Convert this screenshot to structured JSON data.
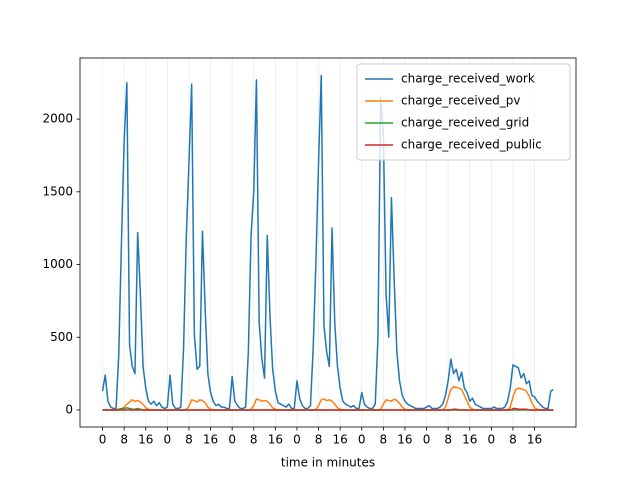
{
  "chart_data": {
    "type": "line",
    "x_label": "time in minutes",
    "x": [
      0,
      1,
      2,
      3,
      4,
      5,
      6,
      7,
      8,
      9,
      10,
      11,
      12,
      13,
      14,
      15,
      16,
      17,
      18,
      19,
      20,
      21,
      22,
      23,
      24,
      25,
      26,
      27,
      28,
      29,
      30,
      31,
      32,
      33,
      34,
      35,
      36,
      37,
      38,
      39,
      40,
      41,
      42,
      43,
      44,
      45,
      46,
      47,
      48,
      49,
      50,
      51,
      52,
      53,
      54,
      55,
      56,
      57,
      58,
      59,
      60,
      61,
      62,
      63,
      64,
      65,
      66,
      67,
      68,
      69,
      70,
      71,
      72,
      73,
      74,
      75,
      76,
      77,
      78,
      79,
      80,
      81,
      82,
      83,
      84,
      85,
      86,
      87,
      88,
      89,
      90,
      91,
      92,
      93,
      94,
      95,
      96,
      97,
      98,
      99,
      100,
      101,
      102,
      103,
      104,
      105,
      106,
      107,
      108,
      109,
      110,
      111,
      112,
      113,
      114,
      115,
      116,
      117,
      118,
      119,
      120,
      121,
      122,
      123,
      124,
      125,
      126,
      127,
      128,
      129,
      130,
      131,
      132,
      133,
      134,
      135,
      136,
      137,
      138,
      139,
      140,
      141,
      142,
      143,
      144,
      145,
      146,
      147,
      148,
      149,
      150,
      151,
      152,
      153,
      154,
      155,
      156,
      157,
      158,
      159,
      160,
      161,
      162,
      163,
      164,
      165,
      166,
      167
    ],
    "series": [
      {
        "name": "charge_received_work",
        "color": "#1f77b4",
        "values": [
          130,
          240,
          60,
          20,
          10,
          10,
          380,
          1150,
          1850,
          2250,
          450,
          300,
          250,
          1220,
          800,
          300,
          150,
          60,
          40,
          60,
          30,
          50,
          20,
          10,
          20,
          240,
          40,
          10,
          10,
          20,
          420,
          1180,
          1700,
          2240,
          520,
          280,
          300,
          1230,
          700,
          250,
          120,
          60,
          30,
          40,
          20,
          20,
          10,
          10,
          230,
          60,
          30,
          10,
          10,
          20,
          400,
          1200,
          1500,
          2270,
          600,
          350,
          220,
          1200,
          650,
          280,
          130,
          50,
          40,
          30,
          20,
          40,
          10,
          10,
          200,
          80,
          30,
          10,
          10,
          30,
          420,
          1000,
          1700,
          2300,
          580,
          400,
          300,
          1250,
          600,
          300,
          150,
          60,
          40,
          30,
          20,
          30,
          10,
          10,
          120,
          40,
          20,
          10,
          10,
          40,
          500,
          2150,
          1900,
          800,
          500,
          1460,
          900,
          400,
          200,
          100,
          60,
          40,
          30,
          20,
          10,
          10,
          10,
          10,
          20,
          30,
          10,
          10,
          10,
          20,
          40,
          100,
          200,
          350,
          250,
          280,
          200,
          260,
          150,
          120,
          60,
          80,
          40,
          30,
          20,
          10,
          10,
          10,
          10,
          20,
          10,
          10,
          10,
          20,
          60,
          150,
          310,
          300,
          290,
          220,
          250,
          180,
          200,
          100,
          90,
          60,
          40,
          20,
          10,
          10,
          130,
          140
        ]
      },
      {
        "name": "charge_received_pv",
        "color": "#ff7f0e",
        "values": [
          0,
          0,
          0,
          0,
          0,
          0,
          0,
          5,
          20,
          40,
          55,
          70,
          60,
          65,
          55,
          40,
          15,
          5,
          0,
          0,
          0,
          0,
          0,
          0,
          0,
          0,
          0,
          0,
          0,
          0,
          0,
          5,
          25,
          70,
          65,
          55,
          70,
          65,
          50,
          20,
          5,
          0,
          0,
          0,
          0,
          0,
          0,
          0,
          0,
          0,
          0,
          0,
          0,
          0,
          0,
          5,
          30,
          75,
          70,
          60,
          65,
          60,
          40,
          15,
          5,
          0,
          0,
          0,
          0,
          0,
          0,
          0,
          0,
          0,
          0,
          0,
          0,
          0,
          0,
          5,
          30,
          70,
          75,
          65,
          70,
          60,
          40,
          15,
          5,
          0,
          0,
          0,
          0,
          0,
          0,
          0,
          0,
          0,
          0,
          0,
          0,
          0,
          0,
          5,
          40,
          70,
          65,
          60,
          75,
          65,
          45,
          20,
          5,
          0,
          0,
          0,
          0,
          0,
          0,
          0,
          0,
          0,
          0,
          0,
          0,
          0,
          0,
          20,
          80,
          140,
          160,
          155,
          150,
          140,
          100,
          60,
          20,
          5,
          0,
          0,
          0,
          0,
          0,
          0,
          0,
          0,
          0,
          0,
          0,
          0,
          0,
          20,
          90,
          140,
          150,
          145,
          140,
          130,
          95,
          50,
          15,
          5,
          0,
          0,
          0,
          0,
          0,
          0
        ]
      },
      {
        "name": "charge_received_grid",
        "color": "#2ca02c",
        "values": [
          0,
          0,
          0,
          0,
          0,
          0,
          5,
          10,
          10,
          15,
          10,
          5,
          5,
          10,
          5,
          0,
          0,
          0,
          0,
          0,
          0,
          0,
          0,
          0,
          0,
          0,
          0,
          0,
          0,
          0,
          0,
          0,
          0,
          0,
          0,
          0,
          0,
          0,
          0,
          0,
          0,
          0,
          0,
          0,
          0,
          0,
          0,
          0,
          0,
          0,
          0,
          0,
          0,
          0,
          0,
          0,
          0,
          0,
          0,
          0,
          0,
          0,
          0,
          0,
          0,
          0,
          0,
          0,
          0,
          0,
          0,
          0,
          0,
          0,
          0,
          0,
          0,
          0,
          0,
          0,
          0,
          0,
          0,
          0,
          0,
          0,
          0,
          0,
          0,
          0,
          0,
          0,
          0,
          0,
          0,
          0,
          0,
          0,
          0,
          0,
          0,
          0,
          0,
          0,
          0,
          0,
          0,
          0,
          0,
          0,
          0,
          0,
          0,
          0,
          0,
          0,
          0,
          0,
          0,
          0,
          0,
          0,
          0,
          0,
          0,
          0,
          0,
          0,
          0,
          0,
          0,
          0,
          0,
          0,
          0,
          0,
          0,
          0,
          0,
          0,
          0,
          0,
          0,
          0,
          0,
          0,
          0,
          0,
          0,
          0,
          0,
          0,
          0,
          0,
          0,
          0,
          0,
          0,
          0,
          0,
          0,
          0,
          0,
          0,
          0,
          0,
          0,
          0
        ]
      },
      {
        "name": "charge_received_public",
        "color": "#d62728",
        "values": [
          0,
          0,
          0,
          0,
          0,
          0,
          0,
          0,
          0,
          0,
          0,
          0,
          0,
          0,
          0,
          0,
          0,
          0,
          0,
          0,
          0,
          0,
          0,
          0,
          0,
          0,
          0,
          0,
          0,
          0,
          0,
          0,
          0,
          0,
          0,
          0,
          0,
          0,
          0,
          0,
          0,
          0,
          0,
          0,
          0,
          0,
          0,
          0,
          0,
          0,
          0,
          0,
          0,
          0,
          0,
          0,
          0,
          0,
          0,
          0,
          0,
          0,
          0,
          0,
          0,
          0,
          0,
          0,
          0,
          0,
          0,
          0,
          0,
          0,
          0,
          0,
          0,
          0,
          0,
          0,
          0,
          0,
          0,
          0,
          0,
          0,
          0,
          0,
          0,
          0,
          0,
          0,
          0,
          0,
          0,
          0,
          0,
          0,
          0,
          0,
          0,
          0,
          0,
          0,
          0,
          0,
          0,
          0,
          0,
          0,
          0,
          0,
          0,
          0,
          0,
          0,
          0,
          0,
          0,
          0,
          0,
          0,
          0,
          0,
          0,
          0,
          0,
          0,
          0,
          0,
          5,
          5,
          0,
          0,
          0,
          0,
          0,
          0,
          0,
          0,
          0,
          0,
          0,
          0,
          0,
          0,
          0,
          0,
          0,
          0,
          0,
          0,
          10,
          10,
          5,
          5,
          5,
          5,
          0,
          0,
          0,
          0,
          0,
          0,
          0,
          0,
          0,
          0
        ]
      }
    ],
    "xlim": [
      -8.35,
      175.35
    ],
    "xticks": [
      0,
      8,
      16,
      {
        "value": 24,
        "label": "0"
      },
      {
        "value": 32,
        "label": "8"
      },
      {
        "value": 40,
        "label": "16"
      },
      {
        "value": 48,
        "label": "0"
      },
      {
        "value": 56,
        "label": "8"
      },
      {
        "value": 64,
        "label": "16"
      },
      {
        "value": 72,
        "label": "0"
      },
      {
        "value": 80,
        "label": "8"
      },
      {
        "value": 88,
        "label": "16"
      },
      {
        "value": 96,
        "label": "0"
      },
      {
        "value": 104,
        "label": "8"
      },
      {
        "value": 112,
        "label": "16"
      },
      {
        "value": 120,
        "label": "0"
      },
      {
        "value": 128,
        "label": "8"
      },
      {
        "value": 136,
        "label": "16"
      },
      {
        "value": 144,
        "label": "0"
      },
      {
        "value": 152,
        "label": "8"
      },
      {
        "value": 160,
        "label": "16"
      }
    ],
    "ylim": [
      -117,
      2420
    ],
    "yticks": [
      0,
      500,
      1000,
      1500,
      2000
    ],
    "x_grid": true,
    "legend": "upper right"
  }
}
